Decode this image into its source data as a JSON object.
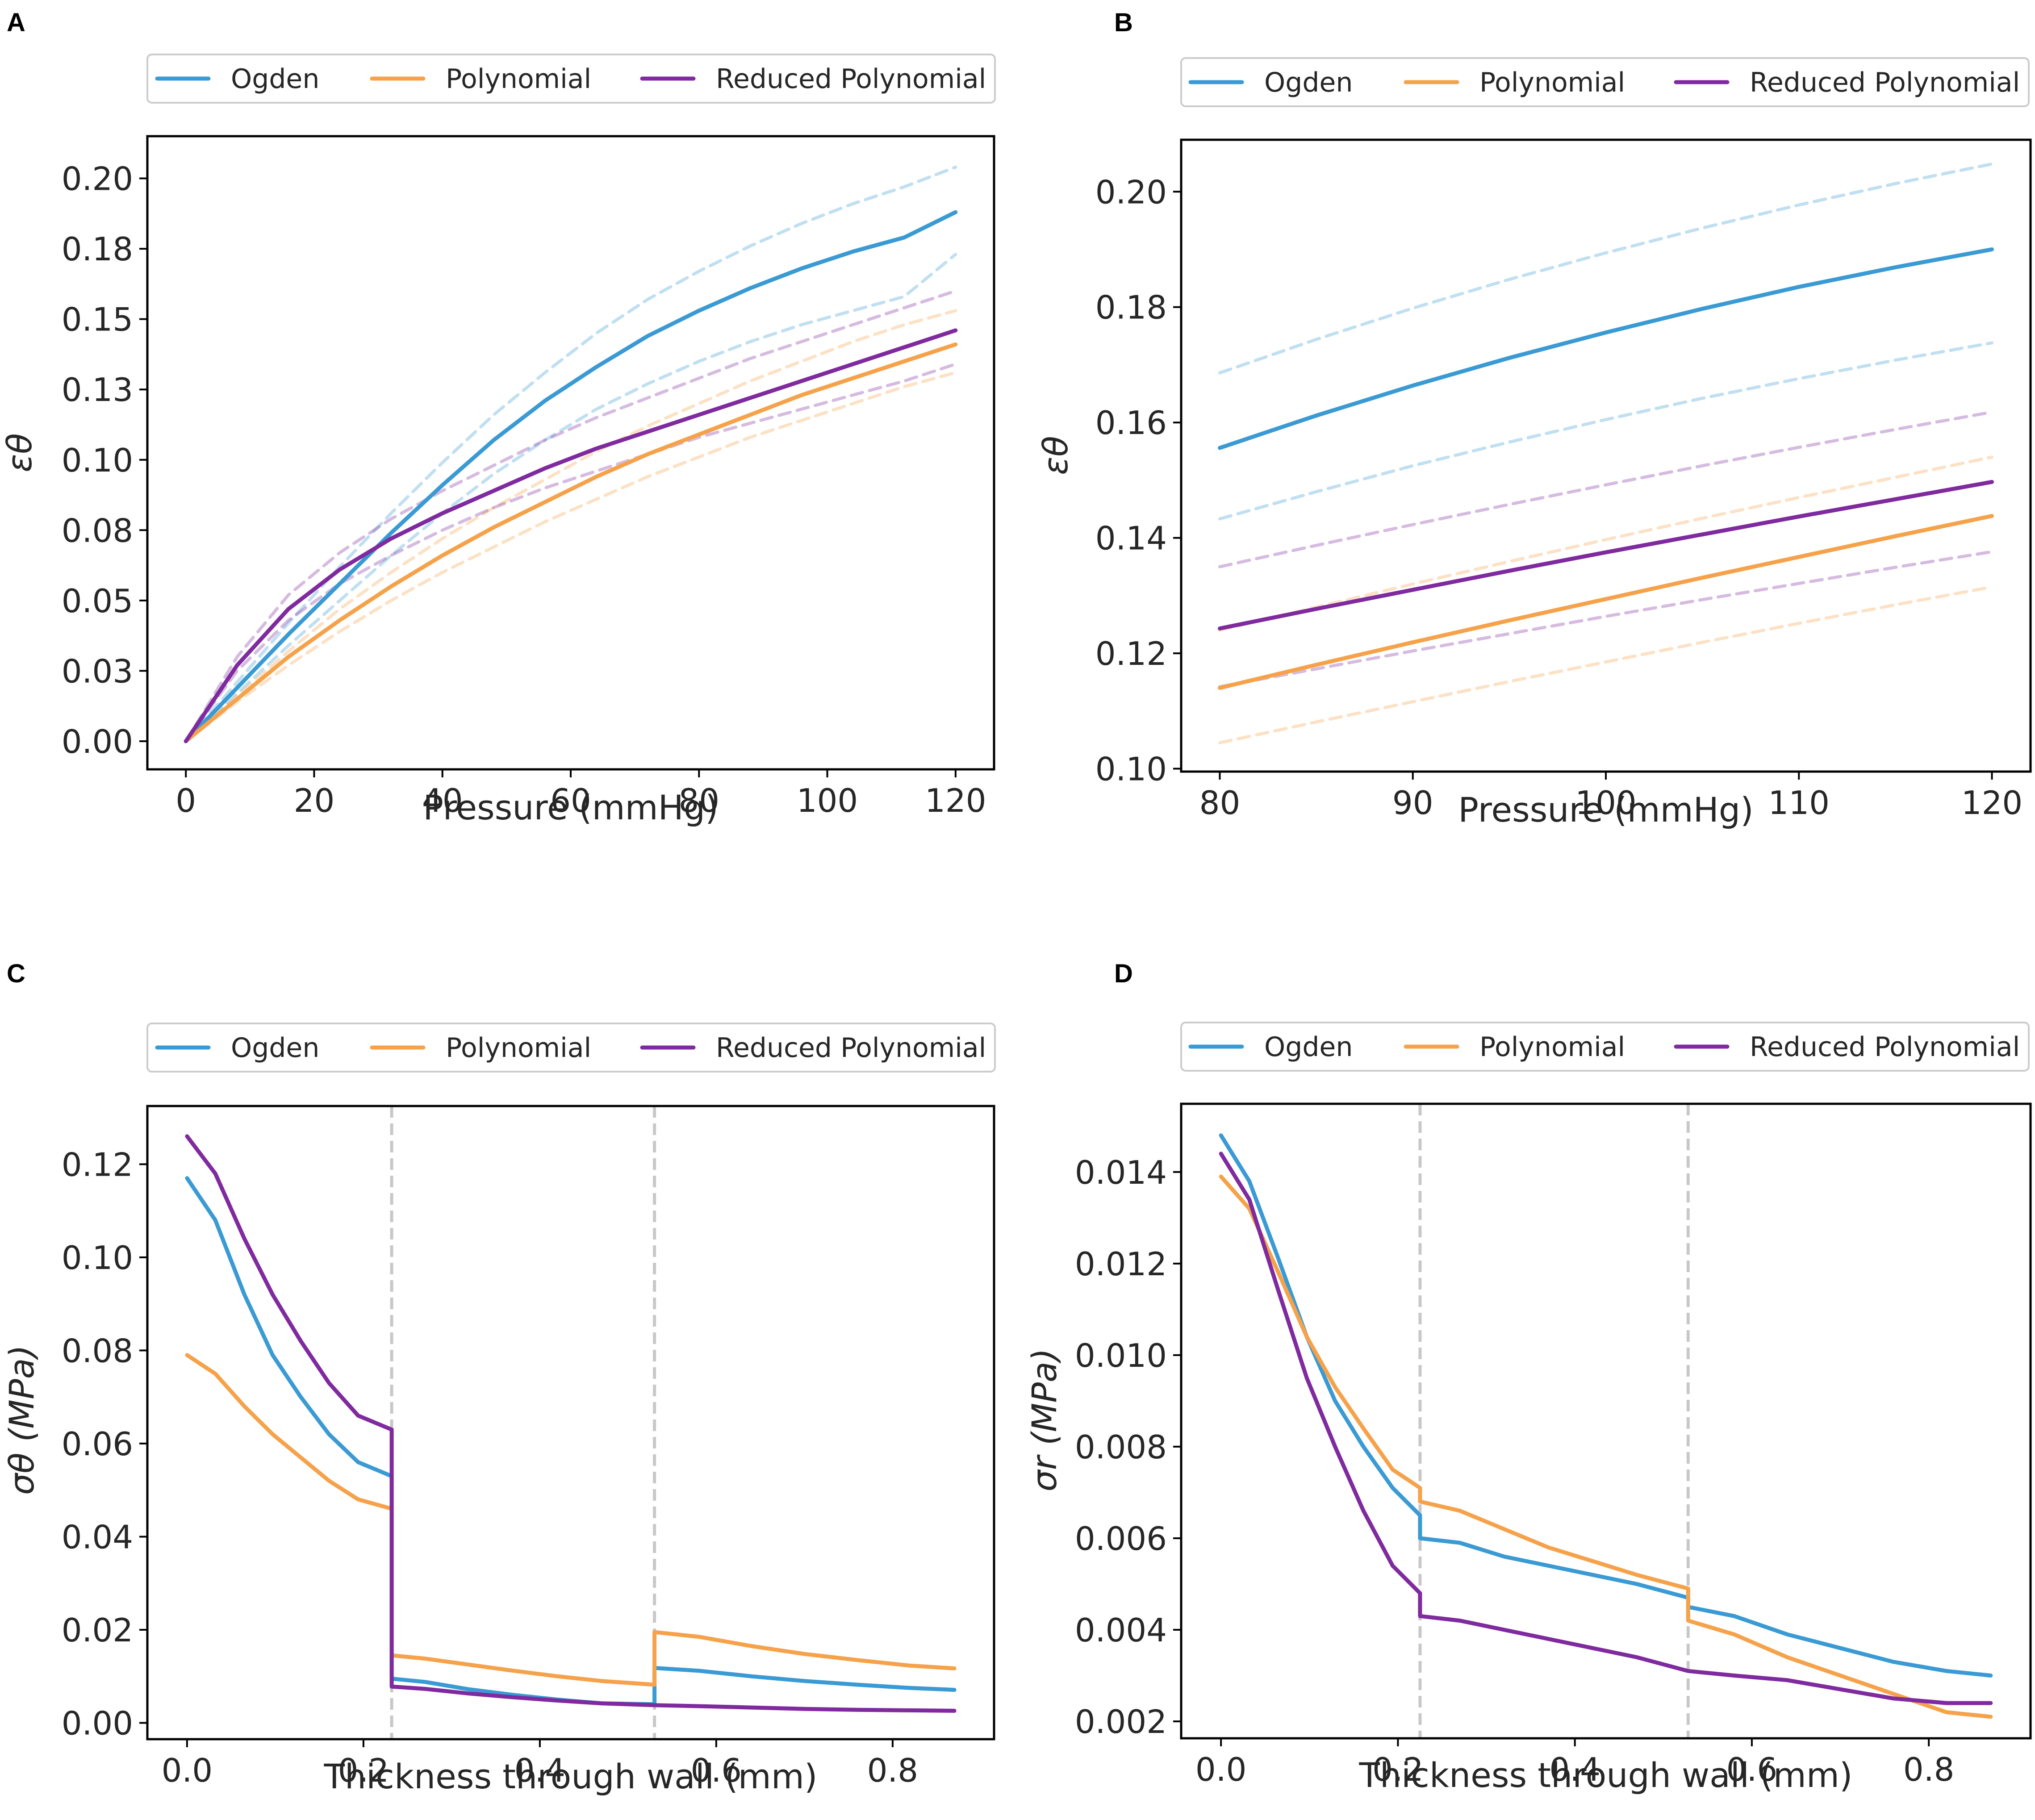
{
  "colors": {
    "ogden": "#3a9ad4",
    "polynomial": "#f5a24a",
    "reduced": "#7f2a9e",
    "divider": "#c8c8c8"
  },
  "legend_labels": [
    "Ogden",
    "Polynomial",
    "Reduced Polynomial"
  ],
  "chart_data": [
    {
      "panel": "A",
      "type": "line",
      "xlabel": "Pressure (mmHg)",
      "ylabel": "εθ",
      "xlim": [
        -6,
        126
      ],
      "ylim": [
        -0.01,
        0.215
      ],
      "xticks": [
        0,
        20,
        40,
        60,
        80,
        100,
        120
      ],
      "xtick_labels": [
        "0",
        "20",
        "40",
        "60",
        "80",
        "100",
        "120"
      ],
      "yticks": [
        0,
        0.025,
        0.05,
        0.075,
        0.1,
        0.125,
        0.15,
        0.175,
        0.2
      ],
      "ytick_labels": [
        "0.00",
        "0.03",
        "0.05",
        "0.08",
        "0.10",
        "0.13",
        "0.15",
        "0.18",
        "0.20"
      ],
      "legend": [
        "Ogden",
        "Polynomial",
        "Reduced Polynomial"
      ],
      "x": [
        0,
        8,
        16,
        24,
        32,
        40,
        48,
        56,
        64,
        72,
        80,
        88,
        96,
        104,
        112,
        120
      ],
      "series": [
        {
          "name": "Ogden",
          "color": "ogden",
          "style": "solid",
          "values": [
            0,
            0.019,
            0.038,
            0.056,
            0.074,
            0.091,
            0.107,
            0.121,
            0.133,
            0.144,
            0.153,
            0.161,
            0.168,
            0.174,
            0.179,
            0.188
          ]
        },
        {
          "name": "Polynomial",
          "color": "polynomial",
          "style": "solid",
          "values": [
            0,
            0.015,
            0.03,
            0.043,
            0.055,
            0.066,
            0.076,
            0.085,
            0.094,
            0.102,
            0.109,
            0.116,
            0.123,
            0.129,
            0.135,
            0.141
          ]
        },
        {
          "name": "Reduced Polynomial",
          "color": "reduced",
          "style": "solid",
          "values": [
            0,
            0.027,
            0.047,
            0.061,
            0.072,
            0.081,
            0.089,
            0.097,
            0.104,
            0.11,
            0.116,
            0.122,
            0.128,
            0.134,
            0.14,
            0.146
          ]
        },
        {
          "name": "Ogden upper",
          "color": "ogden",
          "style": "dashed",
          "values": [
            0,
            0.021,
            0.042,
            0.062,
            0.081,
            0.099,
            0.116,
            0.131,
            0.145,
            0.157,
            0.167,
            0.176,
            0.184,
            0.191,
            0.197,
            0.204
          ]
        },
        {
          "name": "Ogden lower",
          "color": "ogden",
          "style": "dashed",
          "values": [
            0,
            0.017,
            0.034,
            0.05,
            0.066,
            0.081,
            0.095,
            0.107,
            0.118,
            0.127,
            0.135,
            0.142,
            0.148,
            0.153,
            0.158,
            0.173
          ]
        },
        {
          "name": "Polynomial upper",
          "color": "polynomial",
          "style": "dashed",
          "values": [
            0,
            0.016,
            0.032,
            0.047,
            0.06,
            0.072,
            0.083,
            0.093,
            0.103,
            0.112,
            0.12,
            0.128,
            0.135,
            0.142,
            0.148,
            0.153
          ]
        },
        {
          "name": "Polynomial lower",
          "color": "polynomial",
          "style": "dashed",
          "values": [
            0,
            0.014,
            0.027,
            0.039,
            0.05,
            0.06,
            0.069,
            0.078,
            0.086,
            0.094,
            0.101,
            0.108,
            0.114,
            0.12,
            0.126,
            0.131
          ]
        },
        {
          "name": "Reduced Polynomial upper",
          "color": "reduced",
          "style": "dashed",
          "values": [
            0,
            0.03,
            0.052,
            0.067,
            0.079,
            0.089,
            0.098,
            0.107,
            0.115,
            0.122,
            0.129,
            0.136,
            0.142,
            0.148,
            0.154,
            0.16
          ]
        },
        {
          "name": "Reduced Polynomial lower",
          "color": "reduced",
          "style": "dashed",
          "values": [
            0,
            0.025,
            0.043,
            0.056,
            0.066,
            0.075,
            0.083,
            0.09,
            0.096,
            0.102,
            0.108,
            0.113,
            0.118,
            0.123,
            0.128,
            0.134
          ]
        }
      ]
    },
    {
      "panel": "B",
      "type": "line",
      "xlabel": "Pressure (mmHg)",
      "ylabel": "εθ",
      "xlim": [
        78,
        122
      ],
      "ylim": [
        0.0995,
        0.209
      ],
      "xticks": [
        80,
        90,
        100,
        110,
        120
      ],
      "xtick_labels": [
        "80",
        "90",
        "100",
        "110",
        "120"
      ],
      "yticks": [
        0.1,
        0.12,
        0.14,
        0.16,
        0.18,
        0.2
      ],
      "ytick_labels": [
        "0.10",
        "0.12",
        "0.14",
        "0.16",
        "0.18",
        "0.20"
      ],
      "legend": [
        "Ogden",
        "Polynomial",
        "Reduced Polynomial"
      ],
      "x": [
        80,
        85,
        90,
        95,
        100,
        105,
        110,
        115,
        120
      ],
      "series": [
        {
          "name": "Ogden",
          "color": "ogden",
          "style": "solid",
          "values": [
            0.1556,
            0.1612,
            0.1664,
            0.1712,
            0.1756,
            0.1797,
            0.1835,
            0.1869,
            0.19
          ]
        },
        {
          "name": "Polynomial",
          "color": "polynomial",
          "style": "solid",
          "values": [
            0.114,
            0.118,
            0.1219,
            0.1257,
            0.1294,
            0.1331,
            0.1367,
            0.1403,
            0.1438
          ]
        },
        {
          "name": "Reduced Polynomial",
          "color": "reduced",
          "style": "solid",
          "values": [
            0.1243,
            0.1277,
            0.131,
            0.1343,
            0.1375,
            0.1406,
            0.1437,
            0.1467,
            0.1497
          ]
        },
        {
          "name": "Ogden upper",
          "color": "ogden",
          "style": "dashed",
          "values": [
            0.1686,
            0.1744,
            0.1798,
            0.1848,
            0.1894,
            0.1937,
            0.1977,
            0.2014,
            0.2048
          ]
        },
        {
          "name": "Ogden lower",
          "color": "ogden",
          "style": "dashed",
          "values": [
            0.1433,
            0.148,
            0.1525,
            0.1566,
            0.1605,
            0.1642,
            0.1676,
            0.1708,
            0.1738
          ]
        },
        {
          "name": "Polynomial upper",
          "color": "polynomial",
          "style": "dashed",
          "values": [
            0.124,
            0.128,
            0.132,
            0.1359,
            0.1397,
            0.1434,
            0.147,
            0.1505,
            0.154
          ]
        },
        {
          "name": "Polynomial lower",
          "color": "polynomial",
          "style": "dashed",
          "values": [
            0.1045,
            0.1081,
            0.1116,
            0.1151,
            0.1185,
            0.1219,
            0.1252,
            0.1284,
            0.1315
          ]
        },
        {
          "name": "Reduced Polynomial upper",
          "color": "reduced",
          "style": "dashed",
          "values": [
            0.135,
            0.1387,
            0.1423,
            0.1458,
            0.1492,
            0.1525,
            0.1557,
            0.1588,
            0.1618
          ]
        },
        {
          "name": "Reduced Polynomial lower",
          "color": "reduced",
          "style": "dashed",
          "values": [
            0.1142,
            0.1173,
            0.1204,
            0.1234,
            0.1264,
            0.1293,
            0.1321,
            0.1349,
            0.1376
          ]
        }
      ]
    },
    {
      "panel": "C",
      "type": "line",
      "xlabel": "Thickness through wall (mm)",
      "ylabel": "σθ (MPa)",
      "xlim": [
        -0.045,
        0.915
      ],
      "ylim": [
        -0.0035,
        0.1325
      ],
      "xticks": [
        0,
        0.2,
        0.4,
        0.6,
        0.8
      ],
      "xtick_labels": [
        "0.0",
        "0.2",
        "0.4",
        "0.6",
        "0.8"
      ],
      "yticks": [
        0,
        0.02,
        0.04,
        0.06,
        0.08,
        0.1,
        0.12
      ],
      "ytick_labels": [
        "0.00",
        "0.02",
        "0.04",
        "0.06",
        "0.08",
        "0.10",
        "0.12"
      ],
      "legend": [
        "Ogden",
        "Polynomial",
        "Reduced Polynomial"
      ],
      "layer_boundaries": [
        0.232,
        0.53
      ],
      "series": [
        {
          "name": "Ogden",
          "color": "ogden",
          "x": [
            0,
            0.032,
            0.065,
            0.097,
            0.129,
            0.161,
            0.194,
            0.232,
            0.232,
            0.27,
            0.32,
            0.37,
            0.42,
            0.47,
            0.53,
            0.53,
            0.58,
            0.64,
            0.7,
            0.76,
            0.82,
            0.87
          ],
          "values": [
            0.117,
            0.108,
            0.092,
            0.079,
            0.07,
            0.062,
            0.056,
            0.053,
            0.0095,
            0.0088,
            0.0072,
            0.006,
            0.005,
            0.0042,
            0.004,
            0.0118,
            0.0112,
            0.01,
            0.009,
            0.0082,
            0.0075,
            0.0071
          ]
        },
        {
          "name": "Polynomial",
          "color": "polynomial",
          "x": [
            0,
            0.032,
            0.065,
            0.097,
            0.129,
            0.161,
            0.194,
            0.232,
            0.232,
            0.27,
            0.32,
            0.37,
            0.42,
            0.47,
            0.53,
            0.53,
            0.58,
            0.64,
            0.7,
            0.76,
            0.82,
            0.87
          ],
          "values": [
            0.079,
            0.075,
            0.068,
            0.062,
            0.057,
            0.052,
            0.048,
            0.046,
            0.0145,
            0.0138,
            0.0125,
            0.0112,
            0.01,
            0.009,
            0.0082,
            0.0195,
            0.0185,
            0.0165,
            0.0148,
            0.0135,
            0.0123,
            0.0117
          ]
        },
        {
          "name": "Reduced Polynomial",
          "color": "reduced",
          "x": [
            0,
            0.032,
            0.065,
            0.097,
            0.129,
            0.161,
            0.194,
            0.232,
            0.232,
            0.27,
            0.32,
            0.37,
            0.42,
            0.47,
            0.53,
            0.53,
            0.58,
            0.64,
            0.7,
            0.76,
            0.82,
            0.87
          ],
          "values": [
            0.126,
            0.118,
            0.104,
            0.092,
            0.082,
            0.073,
            0.066,
            0.063,
            0.0078,
            0.0073,
            0.0063,
            0.0055,
            0.0048,
            0.0042,
            0.0038,
            0.0038,
            0.0036,
            0.0033,
            0.003,
            0.0028,
            0.0027,
            0.0026
          ]
        }
      ]
    },
    {
      "panel": "D",
      "type": "line",
      "xlabel": "Thickness through wall (mm)",
      "ylabel": "σr (MPa)",
      "xlim": [
        -0.045,
        0.915
      ],
      "ylim": [
        0.00163,
        0.01549
      ],
      "xticks": [
        0,
        0.2,
        0.4,
        0.6,
        0.8
      ],
      "xtick_labels": [
        "0.0",
        "0.2",
        "0.4",
        "0.6",
        "0.8"
      ],
      "yticks": [
        0.002,
        0.004,
        0.006,
        0.008,
        0.01,
        0.012,
        0.014
      ],
      "ytick_labels": [
        "0.002",
        "0.004",
        "0.006",
        "0.008",
        "0.010",
        "0.012",
        "0.014"
      ],
      "legend": [
        "Ogden",
        "Polynomial",
        "Reduced Polynomial"
      ],
      "layer_boundaries": [
        0.225,
        0.528
      ],
      "series": [
        {
          "name": "Ogden",
          "color": "ogden",
          "x": [
            0,
            0.032,
            0.065,
            0.097,
            0.129,
            0.161,
            0.194,
            0.225,
            0.225,
            0.27,
            0.32,
            0.37,
            0.42,
            0.47,
            0.528,
            0.528,
            0.58,
            0.64,
            0.7,
            0.76,
            0.82,
            0.87
          ],
          "values": [
            0.0148,
            0.0138,
            0.0121,
            0.0104,
            0.009,
            0.008,
            0.0071,
            0.0065,
            0.006,
            0.0059,
            0.0056,
            0.0054,
            0.0052,
            0.005,
            0.0047,
            0.0045,
            0.0043,
            0.0039,
            0.0036,
            0.0033,
            0.0031,
            0.003
          ]
        },
        {
          "name": "Polynomial",
          "color": "polynomial",
          "x": [
            0,
            0.032,
            0.065,
            0.097,
            0.129,
            0.161,
            0.194,
            0.225,
            0.225,
            0.27,
            0.32,
            0.37,
            0.42,
            0.47,
            0.528,
            0.528,
            0.58,
            0.64,
            0.7,
            0.76,
            0.82,
            0.87
          ],
          "values": [
            0.0139,
            0.0132,
            0.0118,
            0.0104,
            0.0093,
            0.0084,
            0.0075,
            0.0071,
            0.0068,
            0.0066,
            0.0062,
            0.0058,
            0.0055,
            0.0052,
            0.0049,
            0.0042,
            0.0039,
            0.0034,
            0.003,
            0.0026,
            0.0022,
            0.0021
          ]
        },
        {
          "name": "Reduced Polynomial",
          "color": "reduced",
          "x": [
            0,
            0.032,
            0.065,
            0.097,
            0.129,
            0.161,
            0.194,
            0.225,
            0.225,
            0.27,
            0.32,
            0.37,
            0.42,
            0.47,
            0.528,
            0.528,
            0.58,
            0.64,
            0.7,
            0.76,
            0.82,
            0.87
          ],
          "values": [
            0.0144,
            0.0134,
            0.0114,
            0.0095,
            0.008,
            0.0066,
            0.0054,
            0.0048,
            0.0043,
            0.0042,
            0.004,
            0.0038,
            0.0036,
            0.0034,
            0.0031,
            0.0031,
            0.003,
            0.0029,
            0.0027,
            0.0025,
            0.0024,
            0.0024
          ]
        }
      ]
    }
  ]
}
